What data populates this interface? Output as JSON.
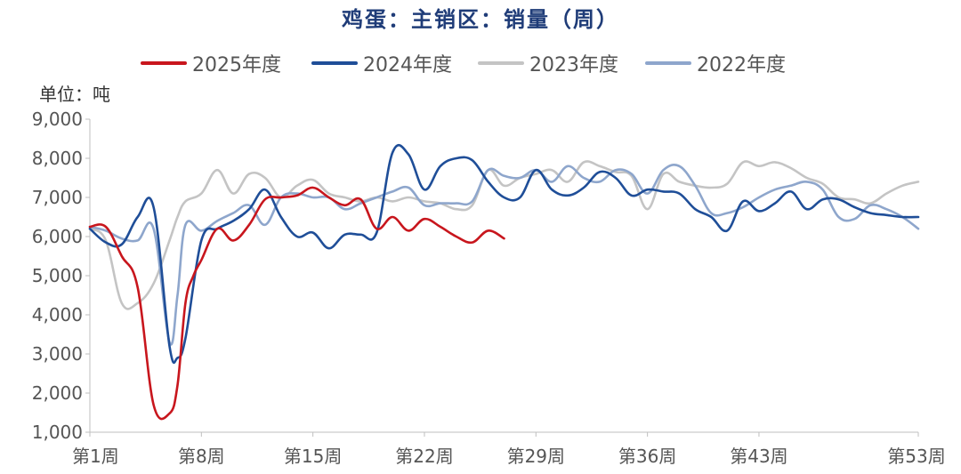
{
  "title": "鸡蛋：主销区：销量（周）",
  "unit_label": "单位：吨",
  "chart_data": {
    "type": "line",
    "title": "鸡蛋：主销区：销量（周）",
    "xlabel": "",
    "ylabel": "单位：吨",
    "ylim": [
      1000,
      9000
    ],
    "xlim": [
      1,
      53
    ],
    "y_ticks": [
      1000,
      2000,
      3000,
      4000,
      5000,
      6000,
      7000,
      8000,
      9000
    ],
    "y_tick_labels": [
      "1,000",
      "2,000",
      "3,000",
      "4,000",
      "5,000",
      "6,000",
      "7,000",
      "8,000",
      "9,000"
    ],
    "x_ticks": [
      1,
      8,
      15,
      22,
      29,
      36,
      43,
      53
    ],
    "x_tick_labels": [
      "第1周",
      "第8周",
      "第15周",
      "第22周",
      "第29周",
      "第36周",
      "第43周",
      "第53周"
    ],
    "legend_position": "top",
    "grid": false,
    "series": [
      {
        "name": "2025年度",
        "color": "#c8161d",
        "x": [
          1,
          2,
          3,
          4,
          5,
          6,
          6.5,
          7,
          7.5,
          8,
          9,
          10,
          11,
          12,
          13,
          14,
          15,
          16,
          17,
          18,
          19,
          20,
          21,
          22,
          23,
          24,
          25,
          26,
          27
        ],
        "values": [
          6250,
          6250,
          5500,
          4700,
          1700,
          1480,
          2200,
          4300,
          5000,
          5400,
          6200,
          5900,
          6300,
          6950,
          7000,
          7050,
          7250,
          7000,
          6800,
          6950,
          6200,
          6500,
          6150,
          6450,
          6250,
          6000,
          5850,
          6150,
          5950
        ]
      },
      {
        "name": "2024年度",
        "color": "#1f4e98",
        "x": [
          1,
          2,
          3,
          4,
          5,
          6,
          6.5,
          7,
          8,
          9,
          10,
          11,
          12,
          13,
          14,
          15,
          16,
          17,
          18,
          19,
          20,
          21,
          22,
          23,
          24,
          25,
          26,
          27,
          28,
          29,
          30,
          31,
          32,
          33,
          34,
          35,
          36,
          37,
          38,
          39,
          40,
          41,
          42,
          43,
          44,
          45,
          46,
          47,
          48,
          49,
          50,
          51,
          52,
          53
        ],
        "values": [
          6200,
          5850,
          5800,
          6500,
          6750,
          3200,
          2900,
          3400,
          5900,
          6200,
          6400,
          6700,
          7200,
          6500,
          6000,
          6100,
          5700,
          6050,
          6050,
          6100,
          8150,
          8100,
          7200,
          7800,
          8000,
          7950,
          7400,
          7000,
          7000,
          7700,
          7200,
          7050,
          7250,
          7650,
          7500,
          7050,
          7200,
          7150,
          7100,
          6700,
          6500,
          6150,
          6900,
          6650,
          6850,
          7150,
          6700,
          6950,
          6950,
          6750,
          6600,
          6550,
          6500,
          6500
        ]
      },
      {
        "name": "2023年度",
        "color": "#c4c4c4",
        "x": [
          1,
          2,
          3,
          4,
          5,
          6,
          6.5,
          7,
          8,
          9,
          10,
          11,
          12,
          13,
          14,
          15,
          16,
          17,
          18,
          19,
          20,
          21,
          22,
          23,
          24,
          25,
          26,
          27,
          28,
          29,
          30,
          31,
          32,
          33,
          34,
          35,
          36,
          37,
          38,
          39,
          40,
          41,
          42,
          43,
          44,
          45,
          46,
          47,
          48,
          49,
          50,
          51,
          52,
          53
        ],
        "values": [
          6200,
          5900,
          4300,
          4300,
          4800,
          5900,
          6500,
          6900,
          7100,
          7700,
          7100,
          7600,
          7500,
          7000,
          7300,
          7450,
          7100,
          7000,
          6900,
          7000,
          6900,
          7000,
          6900,
          6850,
          6700,
          6800,
          7700,
          7300,
          7500,
          7600,
          7700,
          7400,
          7900,
          7800,
          7650,
          7550,
          6700,
          7600,
          7400,
          7300,
          7250,
          7350,
          7900,
          7800,
          7900,
          7750,
          7500,
          7350,
          7000,
          6950,
          6850,
          7100,
          7300,
          7400
        ]
      },
      {
        "name": "2022年度",
        "color": "#8ea6cc",
        "x": [
          1,
          2,
          3,
          4,
          5,
          6,
          6.5,
          7,
          8,
          9,
          10,
          11,
          12,
          13,
          14,
          15,
          16,
          17,
          18,
          19,
          20,
          21,
          22,
          23,
          24,
          25,
          26,
          27,
          28,
          29,
          30,
          31,
          32,
          33,
          34,
          35,
          36,
          37,
          38,
          39,
          40,
          41,
          42,
          43,
          44,
          45,
          46,
          47,
          48,
          49,
          50,
          51,
          52,
          53
        ],
        "values": [
          6250,
          6150,
          5950,
          5900,
          6200,
          3300,
          4500,
          6300,
          6150,
          6400,
          6600,
          6800,
          6300,
          7000,
          7100,
          7000,
          7000,
          6700,
          6850,
          7000,
          7150,
          7250,
          6800,
          6850,
          6850,
          6900,
          7700,
          7550,
          7500,
          7700,
          7400,
          7800,
          7500,
          7400,
          7700,
          7600,
          7100,
          7700,
          7800,
          7300,
          6600,
          6600,
          6750,
          7000,
          7200,
          7300,
          7400,
          7200,
          6500,
          6450,
          6800,
          6700,
          6500,
          6200
        ]
      }
    ]
  }
}
